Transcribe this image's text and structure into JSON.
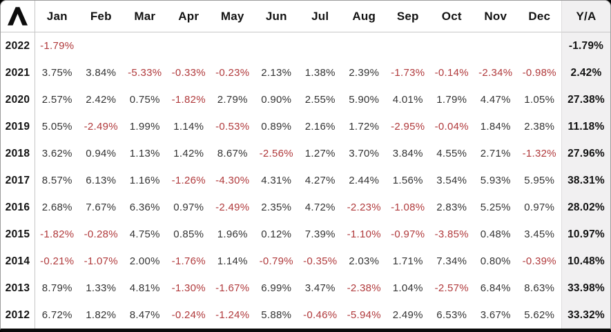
{
  "brand": {
    "logo_icon": "lambda-logo"
  },
  "table": {
    "months": [
      "Jan",
      "Feb",
      "Mar",
      "Apr",
      "May",
      "Jun",
      "Jul",
      "Aug",
      "Sep",
      "Oct",
      "Nov",
      "Dec"
    ],
    "ya_label": "Y/A",
    "rows": [
      {
        "year": "2022",
        "values": [
          "-1.79%",
          "",
          "",
          "",
          "",
          "",
          "",
          "",
          "",
          "",
          "",
          ""
        ],
        "ya": "-1.79%"
      },
      {
        "year": "2021",
        "values": [
          "3.75%",
          "3.84%",
          "-5.33%",
          "-0.33%",
          "-0.23%",
          "2.13%",
          "1.38%",
          "2.39%",
          "-1.73%",
          "-0.14%",
          "-2.34%",
          "-0.98%"
        ],
        "ya": "2.42%"
      },
      {
        "year": "2020",
        "values": [
          "2.57%",
          "2.42%",
          "0.75%",
          "-1.82%",
          "2.79%",
          "0.90%",
          "2.55%",
          "5.90%",
          "4.01%",
          "1.79%",
          "4.47%",
          "1.05%"
        ],
        "ya": "27.38%"
      },
      {
        "year": "2019",
        "values": [
          "5.05%",
          "-2.49%",
          "1.99%",
          "1.14%",
          "-0.53%",
          "0.89%",
          "2.16%",
          "1.72%",
          "-2.95%",
          "-0.04%",
          "1.84%",
          "2.38%"
        ],
        "ya": "11.18%"
      },
      {
        "year": "2018",
        "values": [
          "3.62%",
          "0.94%",
          "1.13%",
          "1.42%",
          "8.67%",
          "-2.56%",
          "1.27%",
          "3.70%",
          "3.84%",
          "4.55%",
          "2.71%",
          "-1.32%"
        ],
        "ya": "27.96%"
      },
      {
        "year": "2017",
        "values": [
          "8.57%",
          "6.13%",
          "1.16%",
          "-1.26%",
          "-4.30%",
          "4.31%",
          "4.27%",
          "2.44%",
          "1.56%",
          "3.54%",
          "5.93%",
          "5.95%"
        ],
        "ya": "38.31%"
      },
      {
        "year": "2016",
        "values": [
          "2.68%",
          "7.67%",
          "6.36%",
          "0.97%",
          "-2.49%",
          "2.35%",
          "4.72%",
          "-2.23%",
          "-1.08%",
          "2.83%",
          "5.25%",
          "0.97%"
        ],
        "ya": "28.02%"
      },
      {
        "year": "2015",
        "values": [
          "-1.82%",
          "-0.28%",
          "4.75%",
          "0.85%",
          "1.96%",
          "0.12%",
          "7.39%",
          "-1.10%",
          "-0.97%",
          "-3.85%",
          "0.48%",
          "3.45%"
        ],
        "ya": "10.97%"
      },
      {
        "year": "2014",
        "values": [
          "-0.21%",
          "-1.07%",
          "2.00%",
          "-1.76%",
          "1.14%",
          "-0.79%",
          "-0.35%",
          "2.03%",
          "1.71%",
          "7.34%",
          "0.80%",
          "-0.39%"
        ],
        "ya": "10.48%"
      },
      {
        "year": "2013",
        "values": [
          "8.79%",
          "1.33%",
          "4.81%",
          "-1.30%",
          "-1.67%",
          "6.99%",
          "3.47%",
          "-2.38%",
          "1.04%",
          "-2.57%",
          "6.84%",
          "8.63%"
        ],
        "ya": "33.98%"
      },
      {
        "year": "2012",
        "values": [
          "6.72%",
          "1.82%",
          "8.47%",
          "-0.24%",
          "-1.24%",
          "5.88%",
          "-0.46%",
          "-5.94%",
          "2.49%",
          "6.53%",
          "3.67%",
          "5.62%"
        ],
        "ya": "33.32%"
      }
    ]
  },
  "colors": {
    "negative_text": "#b0393b",
    "positive_text": "#333333",
    "ya_column_bg": "#f1f0f1",
    "grid_line": "#c6c6c6",
    "logo": "#0d0d0d"
  },
  "chart_data": {
    "type": "table",
    "columns": [
      "Jan",
      "Feb",
      "Mar",
      "Apr",
      "May",
      "Jun",
      "Jul",
      "Aug",
      "Sep",
      "Oct",
      "Nov",
      "Dec",
      "Y/A"
    ],
    "rows": [
      {
        "year": 2022,
        "monthly": [
          -1.79,
          null,
          null,
          null,
          null,
          null,
          null,
          null,
          null,
          null,
          null,
          null
        ],
        "yearly": -1.79
      },
      {
        "year": 2021,
        "monthly": [
          3.75,
          3.84,
          -5.33,
          -0.33,
          -0.23,
          2.13,
          1.38,
          2.39,
          -1.73,
          -0.14,
          -2.34,
          -0.98
        ],
        "yearly": 2.42
      },
      {
        "year": 2020,
        "monthly": [
          2.57,
          2.42,
          0.75,
          -1.82,
          2.79,
          0.9,
          2.55,
          5.9,
          4.01,
          1.79,
          4.47,
          1.05
        ],
        "yearly": 27.38
      },
      {
        "year": 2019,
        "monthly": [
          5.05,
          -2.49,
          1.99,
          1.14,
          -0.53,
          0.89,
          2.16,
          1.72,
          -2.95,
          -0.04,
          1.84,
          2.38
        ],
        "yearly": 11.18
      },
      {
        "year": 2018,
        "monthly": [
          3.62,
          0.94,
          1.13,
          1.42,
          8.67,
          -2.56,
          1.27,
          3.7,
          3.84,
          4.55,
          2.71,
          -1.32
        ],
        "yearly": 27.96
      },
      {
        "year": 2017,
        "monthly": [
          8.57,
          6.13,
          1.16,
          -1.26,
          -4.3,
          4.31,
          4.27,
          2.44,
          1.56,
          3.54,
          5.93,
          5.95
        ],
        "yearly": 38.31
      },
      {
        "year": 2016,
        "monthly": [
          2.68,
          7.67,
          6.36,
          0.97,
          -2.49,
          2.35,
          4.72,
          -2.23,
          -1.08,
          2.83,
          5.25,
          0.97
        ],
        "yearly": 28.02
      },
      {
        "year": 2015,
        "monthly": [
          -1.82,
          -0.28,
          4.75,
          0.85,
          1.96,
          0.12,
          7.39,
          -1.1,
          -0.97,
          -3.85,
          0.48,
          3.45
        ],
        "yearly": 10.97
      },
      {
        "year": 2014,
        "monthly": [
          -0.21,
          -1.07,
          2.0,
          -1.76,
          1.14,
          -0.79,
          -0.35,
          2.03,
          1.71,
          7.34,
          0.8,
          -0.39
        ],
        "yearly": 10.48
      },
      {
        "year": 2013,
        "monthly": [
          8.79,
          1.33,
          4.81,
          -1.3,
          -1.67,
          6.99,
          3.47,
          -2.38,
          1.04,
          -2.57,
          6.84,
          8.63
        ],
        "yearly": 33.98
      },
      {
        "year": 2012,
        "monthly": [
          6.72,
          1.82,
          8.47,
          -0.24,
          -1.24,
          5.88,
          -0.46,
          -5.94,
          2.49,
          6.53,
          3.67,
          5.62
        ],
        "yearly": 33.32
      }
    ]
  }
}
